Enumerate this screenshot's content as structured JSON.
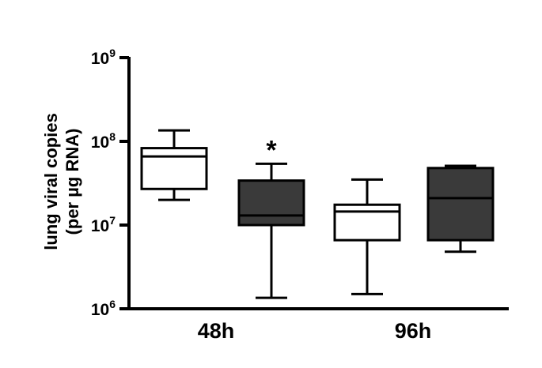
{
  "chart_data": {
    "type": "box",
    "ylabel_line1": "lung viral copies",
    "ylabel_line2": "(per µg RNA)",
    "yscale": "log",
    "ylim": [
      1000000,
      1000000000
    ],
    "yticks": [
      {
        "value": 1000000,
        "base": "10",
        "exp": "6"
      },
      {
        "value": 10000000,
        "base": "10",
        "exp": "7"
      },
      {
        "value": 100000000,
        "base": "10",
        "exp": "8"
      },
      {
        "value": 1000000000,
        "base": "10",
        "exp": "9"
      }
    ],
    "groups": [
      {
        "label": "48h",
        "boxes": [
          {
            "fill": "#ffffff",
            "min": 20000000,
            "q1": 27000000,
            "median": 66000000,
            "q3": 83000000,
            "max": 135000000,
            "annotation": ""
          },
          {
            "fill": "#3a3a3a",
            "min": 1350000,
            "q1": 10000000,
            "median": 13000000,
            "q3": 34000000,
            "max": 54000000,
            "annotation": "*"
          }
        ]
      },
      {
        "label": "96h",
        "boxes": [
          {
            "fill": "#ffffff",
            "min": 1500000,
            "q1": 6600000,
            "median": 14500000,
            "q3": 17500000,
            "max": 35000000,
            "annotation": ""
          },
          {
            "fill": "#3a3a3a",
            "min": 4800000,
            "q1": 6600000,
            "median": 21000000,
            "q3": 48000000,
            "max": 51000000,
            "annotation": ""
          }
        ]
      }
    ],
    "grid": false,
    "legend": "none"
  }
}
